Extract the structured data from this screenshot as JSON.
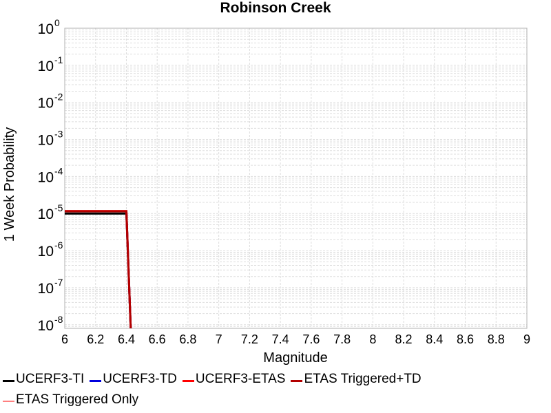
{
  "chart_data": {
    "type": "line",
    "title": "Robinson Creek",
    "xlabel": "Magnitude",
    "ylabel": "1 Week Probability",
    "xlim": [
      6,
      9
    ],
    "ylim": [
      8e-09,
      1
    ],
    "yscale": "log",
    "grid": true,
    "legend_position": "bottom",
    "x_ticks": [
      "6",
      "6.2",
      "6.4",
      "6.6",
      "6.8",
      "7",
      "7.2",
      "7.4",
      "7.6",
      "7.8",
      "8",
      "8.2",
      "8.4",
      "8.6",
      "8.8",
      "9"
    ],
    "y_ticks": [
      {
        "base": "10",
        "exp": "0"
      },
      {
        "base": "10",
        "exp": "-1"
      },
      {
        "base": "10",
        "exp": "-2"
      },
      {
        "base": "10",
        "exp": "-3"
      },
      {
        "base": "10",
        "exp": "-4"
      },
      {
        "base": "10",
        "exp": "-5"
      },
      {
        "base": "10",
        "exp": "-6"
      },
      {
        "base": "10",
        "exp": "-7"
      },
      {
        "base": "10",
        "exp": "-8"
      }
    ],
    "series": [
      {
        "name": "UCERF3-TI",
        "color": "#000000",
        "width": 3,
        "points": [
          [
            6.0,
            1e-05
          ],
          [
            6.4,
            1e-05
          ],
          [
            6.43,
            5e-09
          ]
        ]
      },
      {
        "name": "UCERF3-TD",
        "color": "#0000dd",
        "width": 3,
        "points": [
          [
            6.0,
            1.15e-05
          ],
          [
            6.4,
            1.15e-05
          ],
          [
            6.43,
            5e-09
          ]
        ]
      },
      {
        "name": "UCERF3-ETAS",
        "color": "#ff0000",
        "width": 3,
        "points": [
          [
            6.0,
            1.17e-05
          ],
          [
            6.4,
            1.17e-05
          ],
          [
            6.43,
            5e-09
          ]
        ]
      },
      {
        "name": "ETAS Triggered+TD",
        "color": "#b30000",
        "width": 3,
        "points": [
          [
            6.0,
            1.15e-05
          ],
          [
            6.4,
            1.15e-05
          ],
          [
            6.43,
            5e-09
          ]
        ]
      },
      {
        "name": "ETAS Triggered Only",
        "color": "#ff8080",
        "width": 1.5,
        "points": []
      }
    ]
  }
}
